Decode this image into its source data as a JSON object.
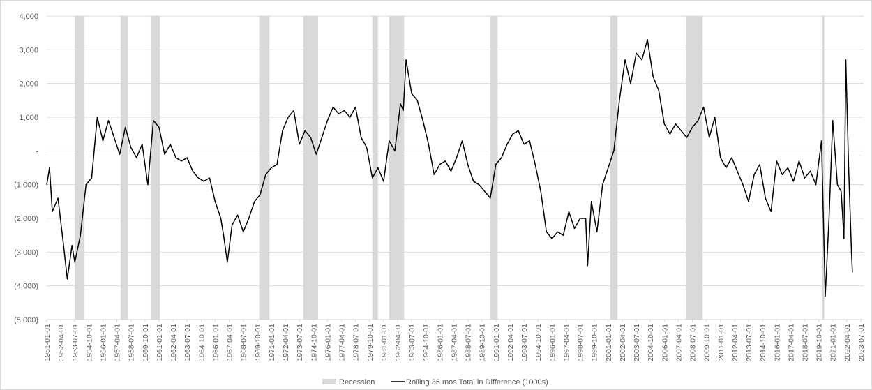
{
  "chart_data": {
    "type": "line",
    "xlim": [
      "1951-01-01",
      "2023-10-01"
    ],
    "xticks": [
      "1951-01-01",
      "1952-04-01",
      "1953-07-01",
      "1954-10-01",
      "1956-01-01",
      "1957-04-01",
      "1958-07-01",
      "1959-10-01",
      "1961-01-01",
      "1962-04-01",
      "1963-07-01",
      "1964-10-01",
      "1966-01-01",
      "1967-04-01",
      "1968-07-01",
      "1969-10-01",
      "1971-01-01",
      "1972-04-01",
      "1973-07-01",
      "1974-10-01",
      "1976-01-01",
      "1977-04-01",
      "1978-07-01",
      "1979-10-01",
      "1981-01-01",
      "1982-04-01",
      "1983-07-01",
      "1984-10-01",
      "1986-01-01",
      "1987-04-01",
      "1988-07-01",
      "1989-10-01",
      "1991-01-01",
      "1992-04-01",
      "1993-07-01",
      "1994-10-01",
      "1996-01-01",
      "1997-04-01",
      "1998-07-01",
      "1999-10-01",
      "2001-01-01",
      "2002-04-01",
      "2003-07-01",
      "2004-10-01",
      "2006-01-01",
      "2007-04-01",
      "2008-07-01",
      "2009-10-01",
      "2011-01-01",
      "2012-04-01",
      "2013-07-01",
      "2014-10-01",
      "2016-01-01",
      "2017-04-01",
      "2018-07-01",
      "2019-10-01",
      "2021-01-01",
      "2022-04-01",
      "2023-07-01"
    ],
    "ylim": [
      -5000,
      4000
    ],
    "yticks": [
      {
        "value": 4000,
        "label": "4,000"
      },
      {
        "value": 3000,
        "label": "3,000"
      },
      {
        "value": 2000,
        "label": "2,000"
      },
      {
        "value": 1000,
        "label": "1,000"
      },
      {
        "value": 0,
        "label": "-"
      },
      {
        "value": -1000,
        "label": "(1,000)"
      },
      {
        "value": -2000,
        "label": "(2,000)"
      },
      {
        "value": -3000,
        "label": "(3,000)"
      },
      {
        "value": -4000,
        "label": "(4,000)"
      },
      {
        "value": -5000,
        "label": "(5,000)"
      }
    ],
    "grid": true,
    "legend": "bottom",
    "recession": {
      "name": "Recession",
      "color": "#d9d9d9",
      "periods": [
        {
          "start": "1953-07-01",
          "end": "1954-05-01"
        },
        {
          "start": "1957-08-01",
          "end": "1958-04-01"
        },
        {
          "start": "1960-04-01",
          "end": "1961-02-01"
        },
        {
          "start": "1969-12-01",
          "end": "1970-11-01"
        },
        {
          "start": "1973-11-01",
          "end": "1975-03-01"
        },
        {
          "start": "1980-01-01",
          "end": "1980-07-01"
        },
        {
          "start": "1981-07-01",
          "end": "1982-11-01"
        },
        {
          "start": "1990-07-01",
          "end": "1991-03-01"
        },
        {
          "start": "2001-03-01",
          "end": "2001-11-01"
        },
        {
          "start": "2007-12-01",
          "end": "2009-06-01"
        },
        {
          "start": "2020-02-01",
          "end": "2020-04-01"
        }
      ]
    },
    "series": [
      {
        "name": "Rolling 36 mos Total in Difference (1000s)",
        "color": "#000000",
        "x": [
          "1951-01-01",
          "1951-04-01",
          "1951-07-01",
          "1952-01-01",
          "1952-07-01",
          "1952-11-01",
          "1953-04-01",
          "1953-07-01",
          "1954-01-01",
          "1954-07-01",
          "1955-01-01",
          "1955-07-01",
          "1956-01-01",
          "1956-07-01",
          "1957-01-01",
          "1957-07-01",
          "1958-01-01",
          "1958-07-01",
          "1959-01-01",
          "1959-07-01",
          "1960-01-01",
          "1960-07-01",
          "1961-01-01",
          "1961-07-01",
          "1962-01-01",
          "1962-07-01",
          "1963-01-01",
          "1963-07-01",
          "1964-01-01",
          "1964-07-01",
          "1965-01-01",
          "1965-07-01",
          "1966-01-01",
          "1966-07-01",
          "1966-10-01",
          "1967-02-01",
          "1967-07-01",
          "1968-01-01",
          "1968-07-01",
          "1969-01-01",
          "1969-07-01",
          "1970-01-01",
          "1970-07-01",
          "1971-01-01",
          "1971-07-01",
          "1972-01-01",
          "1972-07-01",
          "1973-01-01",
          "1973-07-01",
          "1974-01-01",
          "1974-07-01",
          "1975-01-01",
          "1975-07-01",
          "1976-01-01",
          "1976-07-01",
          "1977-01-01",
          "1977-07-01",
          "1978-01-01",
          "1978-07-01",
          "1979-01-01",
          "1979-07-01",
          "1980-01-01",
          "1980-07-01",
          "1981-01-01",
          "1981-07-01",
          "1982-01-01",
          "1982-07-01",
          "1982-10-01",
          "1983-01-01",
          "1983-07-01",
          "1984-01-01",
          "1984-07-01",
          "1985-01-01",
          "1985-07-01",
          "1986-01-01",
          "1986-07-01",
          "1987-01-01",
          "1987-07-01",
          "1988-01-01",
          "1988-07-01",
          "1989-01-01",
          "1989-07-01",
          "1990-01-01",
          "1990-07-01",
          "1991-01-01",
          "1991-07-01",
          "1992-01-01",
          "1992-07-01",
          "1993-01-01",
          "1993-07-01",
          "1994-01-01",
          "1994-07-01",
          "1995-01-01",
          "1995-07-01",
          "1996-01-01",
          "1996-07-01",
          "1997-01-01",
          "1997-07-01",
          "1998-01-01",
          "1998-07-01",
          "1999-01-01",
          "1999-03-01",
          "1999-07-01",
          "2000-01-01",
          "2000-07-01",
          "2001-01-01",
          "2001-07-01",
          "2002-01-01",
          "2002-07-01",
          "2003-01-01",
          "2003-07-01",
          "2004-01-01",
          "2004-07-01",
          "2005-01-01",
          "2005-07-01",
          "2006-01-01",
          "2006-07-01",
          "2007-01-01",
          "2007-07-01",
          "2008-01-01",
          "2008-07-01",
          "2009-01-01",
          "2009-07-01",
          "2010-01-01",
          "2010-07-01",
          "2011-01-01",
          "2011-07-01",
          "2012-01-01",
          "2012-07-01",
          "2013-01-01",
          "2013-07-01",
          "2014-01-01",
          "2014-07-01",
          "2015-01-01",
          "2015-07-01",
          "2016-01-01",
          "2016-07-01",
          "2017-01-01",
          "2017-07-01",
          "2018-01-01",
          "2018-07-01",
          "2019-01-01",
          "2019-07-01",
          "2020-01-01",
          "2020-05-01",
          "2020-09-01",
          "2021-01-01",
          "2021-06-01",
          "2021-10-01",
          "2022-01-01",
          "2022-03-01",
          "2022-06-01",
          "2022-09-01",
          "2022-10-01"
        ],
        "values": [
          -1000,
          -500,
          -1800,
          -1400,
          -2800,
          -3800,
          -2800,
          -3300,
          -2500,
          -1000,
          -800,
          1000,
          300,
          900,
          400,
          -100,
          700,
          100,
          -200,
          200,
          -1000,
          900,
          700,
          -100,
          200,
          -200,
          -300,
          -200,
          -600,
          -800,
          -900,
          -800,
          -1500,
          -2000,
          -2500,
          -3300,
          -2200,
          -1900,
          -2400,
          -2000,
          -1500,
          -1300,
          -700,
          -500,
          -400,
          600,
          1000,
          1200,
          200,
          600,
          400,
          -100,
          400,
          900,
          1300,
          1100,
          1200,
          1000,
          1300,
          400,
          100,
          -800,
          -500,
          -900,
          300,
          0,
          1400,
          1200,
          2700,
          1700,
          1500,
          900,
          200,
          -700,
          -400,
          -300,
          -600,
          -200,
          300,
          -400,
          -900,
          -1000,
          -1200,
          -1400,
          -400,
          -200,
          200,
          500,
          600,
          200,
          300,
          -400,
          -1200,
          -2400,
          -2600,
          -2400,
          -2500,
          -1800,
          -2300,
          -2000,
          -2000,
          -3400,
          -1500,
          -2400,
          -1000,
          -500,
          0,
          1500,
          2700,
          2000,
          2900,
          2700,
          3300,
          2200,
          1800,
          800,
          500,
          800,
          600,
          400,
          700,
          900,
          1300,
          400,
          1000,
          -200,
          -500,
          -200,
          -600,
          -1000,
          -1500,
          -700,
          -400,
          -1400,
          -1800,
          -300,
          -700,
          -500,
          -900,
          -300,
          -800,
          -600,
          -1000,
          300,
          -4300,
          -2000,
          900,
          -1000,
          -1200,
          -2600,
          2700,
          -500,
          -3000,
          -3600
        ]
      }
    ]
  }
}
